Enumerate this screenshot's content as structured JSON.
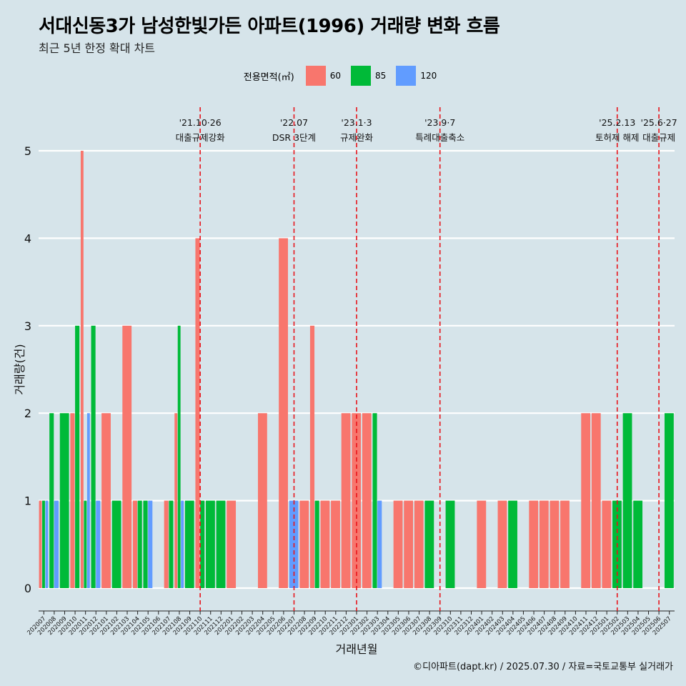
{
  "title": "서대신동3가 남성한빛가든 아파트(1996) 거래량 변화 흐름",
  "subtitle": "최근 5년 한정 확대 차트",
  "caption": "©디아파트(dapt.kr) / 2025.07.30 / 자료=국토교통부 실거래가",
  "legend": {
    "title": "전용면적(㎡)",
    "items": [
      {
        "label": "60",
        "color": "#f8766d"
      },
      {
        "label": "85",
        "color": "#00ba38"
      },
      {
        "label": "120",
        "color": "#619cff"
      }
    ]
  },
  "chart_data": {
    "type": "bar",
    "xlabel": "거래년월",
    "ylabel": "거래량(건)",
    "ylim": [
      0,
      5
    ],
    "yticks": [
      0,
      1,
      2,
      3,
      4,
      5
    ],
    "grid": true,
    "legend_position": "top",
    "categories": [
      "202007",
      "202008",
      "202009",
      "202010",
      "202011",
      "202012",
      "202101",
      "202102",
      "202103",
      "202104",
      "202105",
      "202106",
      "202107",
      "202108",
      "202109",
      "202110",
      "202111",
      "202112",
      "202201",
      "202202",
      "202203",
      "202204",
      "202205",
      "202206",
      "202207",
      "202208",
      "202209",
      "202210",
      "202211",
      "202212",
      "202301",
      "202302",
      "202303",
      "202304",
      "202305",
      "202306",
      "202307",
      "202308",
      "202309",
      "202310",
      "202311",
      "202312",
      "202401",
      "202402",
      "202403",
      "202404",
      "202405",
      "202406",
      "202407",
      "202408",
      "202409",
      "202410",
      "202411",
      "202412",
      "202501",
      "202502",
      "202503",
      "202504",
      "202505",
      "202506",
      "202507"
    ],
    "series": [
      {
        "name": "60",
        "color": "#f8766d",
        "values": [
          1,
          0,
          0,
          2,
          5,
          0,
          2,
          0,
          3,
          1,
          0,
          0,
          1,
          2,
          0,
          4,
          0,
          0,
          1,
          0,
          0,
          2,
          0,
          4,
          0,
          1,
          3,
          1,
          1,
          2,
          2,
          2,
          0,
          0,
          1,
          1,
          1,
          0,
          0,
          0,
          0,
          0,
          1,
          0,
          1,
          0,
          0,
          1,
          1,
          1,
          1,
          0,
          2,
          2,
          1,
          0,
          0,
          0,
          0,
          0,
          0
        ]
      },
      {
        "name": "85",
        "color": "#00ba38",
        "values": [
          1,
          2,
          2,
          3,
          1,
          3,
          0,
          1,
          0,
          1,
          1,
          0,
          1,
          3,
          1,
          1,
          1,
          1,
          0,
          0,
          0,
          0,
          0,
          0,
          0,
          0,
          1,
          0,
          0,
          0,
          0,
          0,
          2,
          0,
          0,
          0,
          0,
          1,
          0,
          1,
          0,
          0,
          0,
          0,
          0,
          1,
          0,
          0,
          0,
          0,
          0,
          0,
          0,
          0,
          0,
          1,
          2,
          1,
          0,
          0,
          2
        ]
      },
      {
        "name": "120",
        "color": "#619cff",
        "values": [
          1,
          1,
          0,
          0,
          2,
          1,
          0,
          0,
          0,
          0,
          1,
          0,
          0,
          1,
          0,
          0,
          0,
          0,
          0,
          0,
          0,
          0,
          0,
          0,
          1,
          0,
          0,
          0,
          0,
          0,
          0,
          0,
          1,
          0,
          0,
          0,
          0,
          0,
          0,
          0,
          0,
          0,
          0,
          0,
          0,
          0,
          0,
          0,
          0,
          0,
          0,
          0,
          0,
          0,
          0,
          0,
          0,
          0,
          0,
          0,
          0
        ]
      }
    ],
    "annotations": [
      {
        "category": "202110",
        "date": "'21.10·26",
        "text": "대출규제강화"
      },
      {
        "category": "202207",
        "date": "'22.07",
        "text": "DSR 3단계"
      },
      {
        "category": "202301",
        "date": "'23.1·3",
        "text": "규제완화"
      },
      {
        "category": "202309",
        "date": "'23.9·7",
        "text": "특례대출축소"
      },
      {
        "category": "202502",
        "date": "'25.2.13",
        "text": "토허제 해제"
      },
      {
        "category": "202506",
        "date": "'25.6·27",
        "text": "대출규제"
      }
    ]
  }
}
